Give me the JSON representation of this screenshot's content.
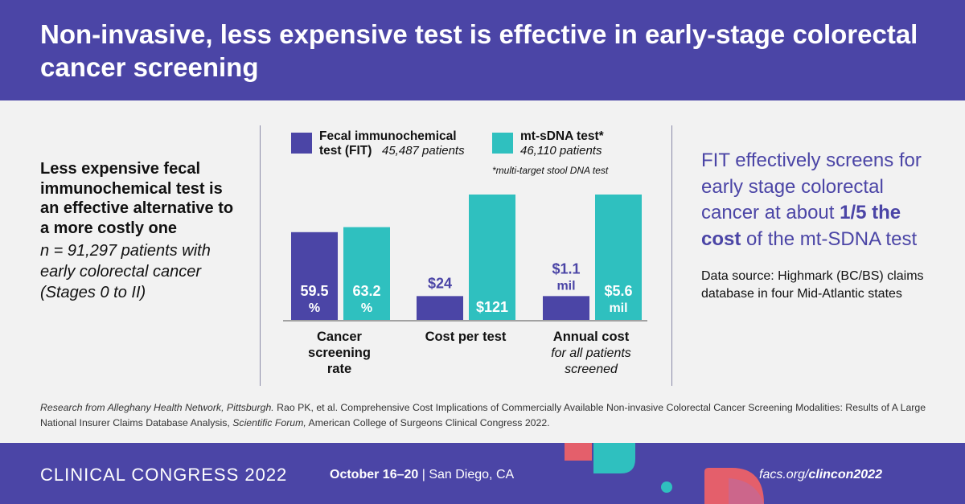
{
  "header": {
    "title": "Non-invasive, less expensive test is effective in early-stage colorectal cancer screening"
  },
  "left": {
    "lead": "Less expensive fecal immunochemical test is an effective alternative to a more costly one",
    "sample": "n = 91,297 patients with early colorectal cancer (Stages 0 to II)"
  },
  "legend": {
    "fit_name": "Fecal immunochemical",
    "fit_name2": "test (FIT)",
    "fit_count": "45,487 patients",
    "mt_name": "mt-sDNA test*",
    "mt_count": "46,110 patients",
    "note": "*multi-target stool DNA test"
  },
  "colors": {
    "fit": "#4b45a6",
    "mt": "#2fc0bf",
    "accent": "#4b45a6"
  },
  "chart_data": {
    "type": "bar",
    "categories": [
      {
        "label": "Cancer screening rate",
        "sub": ""
      },
      {
        "label": "Cost per test",
        "sub": ""
      },
      {
        "label": "Annual cost",
        "sub": "for all patients screened"
      }
    ],
    "series": [
      {
        "name": "Fecal immunochemical test (FIT)",
        "color": "#4b45a6",
        "labels": [
          [
            "59.5",
            "%"
          ],
          [
            "$24"
          ],
          [
            "$1.1",
            "mil"
          ]
        ],
        "fraction": [
          0.7,
          0.19,
          0.19
        ]
      },
      {
        "name": "mt-sDNA test*",
        "color": "#2fc0bf",
        "labels": [
          [
            "63.2",
            "%"
          ],
          [
            "$121"
          ],
          [
            "$5.6",
            "mil"
          ]
        ],
        "fraction": [
          0.74,
          1.0,
          1.0
        ]
      }
    ]
  },
  "right": {
    "claim_pre": "FIT effectively screens for early stage colorectal cancer at about",
    "claim_bold": "1/5 the cost",
    "claim_post": "of the mt-SDNA test",
    "source": "Data source: Highmark (BC/BS) claims database in four Mid-Atlantic states"
  },
  "footnote": {
    "part1": "Research from Alleghany Health Network, Pittsburgh.",
    "part2": " Rao PK, et al. Comprehensive Cost Implications of Commercially Available Non-invasive Colorectal Cancer Screening Modalities: Results of A Large National Insurer Claims Database Analysis, ",
    "part3": "Scientific Forum,",
    "part4": " American College of Surgeons Clinical Congress 2022."
  },
  "footer": {
    "brand": "CLINICAL CONGRESS 2022",
    "date_bold": "October 16–20",
    "date_rest": " | San Diego, CA",
    "url_pre": "facs.org/",
    "url_bold": "clincon2022"
  }
}
